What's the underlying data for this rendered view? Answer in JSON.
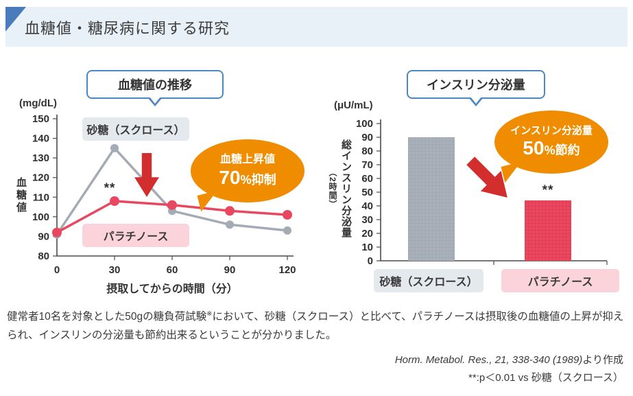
{
  "header": {
    "title": "血糖値・糖尿病に関する研究"
  },
  "chart_data": [
    {
      "type": "line",
      "title": "血糖値の推移",
      "unit_label": "(mg/dL)",
      "ylabel": "血糖値",
      "xlabel": "摂取してからの時間（分）",
      "x": [
        0,
        30,
        60,
        90,
        120
      ],
      "ylim": [
        80,
        150
      ],
      "ytick_step": 10,
      "series": [
        {
          "name": "砂糖（スクロース）",
          "color": "#a3abb5",
          "values": [
            91,
            135,
            103,
            96,
            93
          ]
        },
        {
          "name": "パラチノース",
          "color": "#e8485f",
          "values": [
            92,
            108,
            106,
            103,
            101
          ]
        }
      ],
      "annotation": {
        "line1": "血糖上昇値",
        "line2_big": "70",
        "line2_small": "%抑制"
      },
      "significance_marker": "**"
    },
    {
      "type": "bar",
      "title": "インスリン分泌量",
      "unit_label": "(μU/mL)",
      "ylabel": "総インスリン分泌量",
      "ylabel_sub": "（2時間）",
      "categories": [
        "砂糖（スクロース）",
        "パラチノース"
      ],
      "values": [
        90,
        44
      ],
      "ylim": [
        0,
        100
      ],
      "ytick_step": 10,
      "bar_fills": [
        {
          "base": "#a9b0ba",
          "grid": "#99a2ad"
        },
        {
          "base": "#e9495f",
          "grid": "#dd2f4e"
        }
      ],
      "annotation": {
        "line1": "インスリン分泌量",
        "line2_big": "50",
        "line2_small": "%節約"
      },
      "significance_marker": "**"
    }
  ],
  "footer": {
    "description_before_ref": "健常者10名を対象とした50gの糖負荷試験",
    "description_refmark": "※",
    "description_after_ref": "において、砂糖（スクロース）と比べて、パラチノースは摂取後の血糖値の上昇が抑えられ、インスリンの分泌量も節約出来るということが分かりました。",
    "citation_italic": "Horm. Metabol. Res., 21, 338-340 (1989)",
    "citation_suffix": "より作成",
    "citation_note": "**:p＜0.01 vs 砂糖（スクロース）"
  }
}
